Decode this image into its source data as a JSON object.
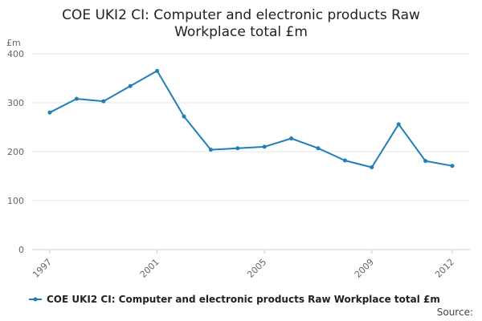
{
  "chart_data": {
    "type": "line",
    "title_lines": [
      "COE UKI2 CI: Computer and electronic products Raw",
      "Workplace total £m"
    ],
    "y_unit_label": "£m",
    "ylim": [
      0,
      400
    ],
    "y_ticks": [
      0,
      100,
      200,
      300,
      400
    ],
    "x_tick_labels": [
      "1997",
      "2001",
      "2005",
      "2009",
      "2012"
    ],
    "grid": true,
    "legend_position": "bottom",
    "series": [
      {
        "name": "COE UKI2 CI: Computer and electronic products Raw Workplace total £m",
        "color": "#1f7fba",
        "x": [
          1997,
          1998,
          1999,
          2000,
          2001,
          2002,
          2003,
          2004,
          2005,
          2006,
          2007,
          2008,
          2009,
          2010,
          2011,
          2012
        ],
        "values": [
          280,
          308,
          303,
          334,
          365,
          272,
          204,
          207,
          210,
          227,
          207,
          182,
          168,
          256,
          181,
          171
        ]
      }
    ],
    "source_label": "Source:"
  }
}
